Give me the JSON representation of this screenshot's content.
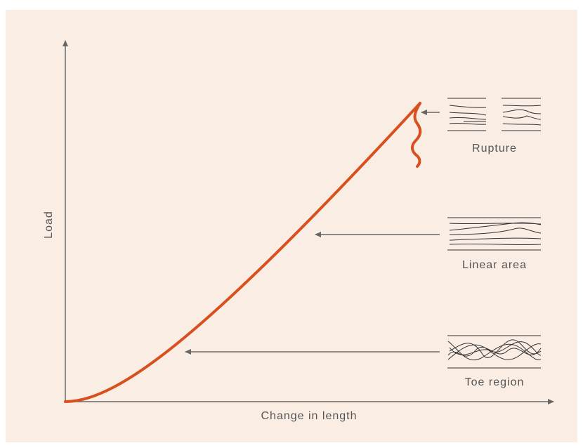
{
  "axes": {
    "y_label": "Load",
    "x_label": "Change in length"
  },
  "regions": [
    {
      "label": "Rupture"
    },
    {
      "label": "Linear area"
    },
    {
      "label": "Toe region"
    }
  ]
}
